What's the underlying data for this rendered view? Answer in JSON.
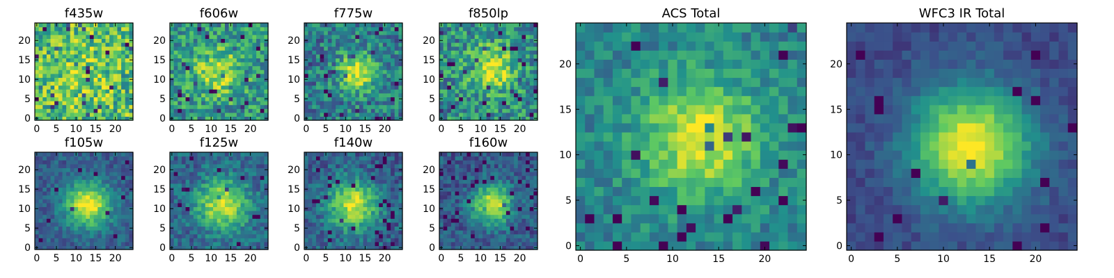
{
  "figure": {
    "panels_title_note": "",
    "colormap": "viridis",
    "colormap_stops": [
      "#440154",
      "#3b528b",
      "#21918c",
      "#5ec962",
      "#fde725"
    ]
  },
  "chart_data": [
    {
      "type": "heatmap",
      "title": "f435w",
      "grid": [
        25,
        25
      ],
      "xlim": [
        -0.5,
        24.5
      ],
      "ylim": [
        -0.5,
        24.5
      ],
      "xticks": [
        0,
        5,
        10,
        15,
        20
      ],
      "yticks": [
        0,
        5,
        10,
        15,
        20
      ],
      "source": {
        "x": 12,
        "y": 11,
        "sigma": 5.0,
        "peak": 0.15,
        "base": 0.68,
        "noise": 0.28,
        "dark_fraction": 0.05
      }
    },
    {
      "type": "heatmap",
      "title": "f606w",
      "grid": [
        25,
        25
      ],
      "xlim": [
        -0.5,
        24.5
      ],
      "ylim": [
        -0.5,
        24.5
      ],
      "xticks": [
        0,
        5,
        10,
        15,
        20
      ],
      "yticks": [
        0,
        5,
        10,
        15,
        20
      ],
      "source": {
        "x": 12,
        "y": 12,
        "sigma": 4.5,
        "peak": 0.35,
        "base": 0.52,
        "noise": 0.24,
        "dark_fraction": 0.05
      }
    },
    {
      "type": "heatmap",
      "title": "f775w",
      "grid": [
        25,
        25
      ],
      "xlim": [
        -0.5,
        24.5
      ],
      "ylim": [
        -0.5,
        24.5
      ],
      "xticks": [
        0,
        5,
        10,
        15,
        20
      ],
      "yticks": [
        0,
        5,
        10,
        15,
        20
      ],
      "source": {
        "x": 13,
        "y": 12,
        "sigma": 3.5,
        "peak": 0.55,
        "base": 0.42,
        "noise": 0.22,
        "dark_fraction": 0.05
      }
    },
    {
      "type": "heatmap",
      "title": "f850lp",
      "grid": [
        25,
        25
      ],
      "xlim": [
        -0.5,
        24.5
      ],
      "ylim": [
        -0.5,
        24.5
      ],
      "xticks": [
        0,
        5,
        10,
        15,
        20
      ],
      "yticks": [
        0,
        5,
        10,
        15,
        20
      ],
      "source": {
        "x": 13,
        "y": 13,
        "sigma": 4.0,
        "peak": 0.45,
        "base": 0.5,
        "noise": 0.24,
        "dark_fraction": 0.05
      }
    },
    {
      "type": "heatmap",
      "title": "f105w",
      "grid": [
        25,
        25
      ],
      "xlim": [
        -0.5,
        24.5
      ],
      "ylim": [
        -0.5,
        24.5
      ],
      "xticks": [
        0,
        5,
        10,
        15,
        20
      ],
      "yticks": [
        0,
        5,
        10,
        15,
        20
      ],
      "source": {
        "x": 13,
        "y": 11,
        "sigma": 4.0,
        "peak": 0.7,
        "base": 0.3,
        "noise": 0.12,
        "dark_fraction": 0.02
      }
    },
    {
      "type": "heatmap",
      "title": "f125w",
      "grid": [
        25,
        25
      ],
      "xlim": [
        -0.5,
        24.5
      ],
      "ylim": [
        -0.5,
        24.5
      ],
      "xticks": [
        0,
        5,
        10,
        15,
        20
      ],
      "yticks": [
        0,
        5,
        10,
        15,
        20
      ],
      "source": {
        "x": 13,
        "y": 11,
        "sigma": 4.5,
        "peak": 0.6,
        "base": 0.33,
        "noise": 0.15,
        "dark_fraction": 0.03
      }
    },
    {
      "type": "heatmap",
      "title": "f140w",
      "grid": [
        25,
        25
      ],
      "xlim": [
        -0.5,
        24.5
      ],
      "ylim": [
        -0.5,
        24.5
      ],
      "xticks": [
        0,
        5,
        10,
        15,
        20
      ],
      "yticks": [
        0,
        5,
        10,
        15,
        20
      ],
      "source": {
        "x": 12,
        "y": 11,
        "sigma": 4.5,
        "peak": 0.62,
        "base": 0.3,
        "noise": 0.15,
        "dark_fraction": 0.04
      }
    },
    {
      "type": "heatmap",
      "title": "f160w",
      "grid": [
        25,
        25
      ],
      "xlim": [
        -0.5,
        24.5
      ],
      "ylim": [
        -0.5,
        24.5
      ],
      "xticks": [
        0,
        5,
        10,
        15,
        20
      ],
      "yticks": [
        0,
        5,
        10,
        15,
        20
      ],
      "source": {
        "x": 13,
        "y": 11,
        "sigma": 3.5,
        "peak": 0.7,
        "base": 0.28,
        "noise": 0.14,
        "dark_fraction": 0.05
      }
    },
    {
      "type": "heatmap",
      "title": "ACS Total",
      "grid": [
        25,
        25
      ],
      "xlim": [
        -0.5,
        24.5
      ],
      "ylim": [
        -0.5,
        24.5
      ],
      "xticks": [
        0,
        5,
        10,
        15,
        20
      ],
      "yticks": [
        0,
        5,
        10,
        15,
        20
      ],
      "source": {
        "x": 13,
        "y": 12,
        "sigma": 4.5,
        "peak": 0.5,
        "base": 0.45,
        "noise": 0.14,
        "dark_fraction": 0.04
      }
    },
    {
      "type": "heatmap",
      "title": "WFC3 IR Total",
      "grid": [
        25,
        25
      ],
      "xlim": [
        -0.5,
        24.5
      ],
      "ylim": [
        -0.5,
        24.5
      ],
      "xticks": [
        0,
        5,
        10,
        15,
        20
      ],
      "yticks": [
        0,
        5,
        10,
        15,
        20
      ],
      "source": {
        "x": 13,
        "y": 11,
        "sigma": 4.5,
        "peak": 0.78,
        "base": 0.22,
        "noise": 0.07,
        "dark_fraction": 0.02
      }
    }
  ]
}
